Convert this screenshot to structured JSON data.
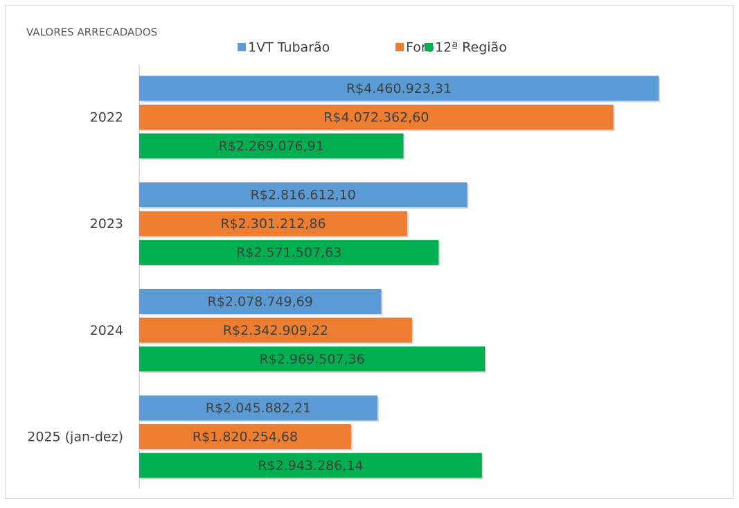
{
  "chart_data": {
    "type": "barh",
    "title": "VALORES ARRECADADOS",
    "categories": [
      "2022",
      "2023",
      "2024",
      "2025 (jan-dez)"
    ],
    "series": [
      {
        "name": "1VT Tubarão",
        "color": "#5b9bd5",
        "values": [
          4460923.31,
          2816612.1,
          2078749.69,
          2045882.21
        ],
        "value_labels": [
          "R$4.460.923,31",
          "R$2.816.612,10",
          "R$2.078.749,69",
          "R$2.045.882,21"
        ]
      },
      {
        "name": "Foro",
        "color": "#ed7d31",
        "values": [
          4072362.6,
          2301212.86,
          2342909.22,
          1820254.68
        ],
        "value_labels": [
          "R$4.072.362,60",
          "R$2.301.212,86",
          "R$2.342.909,22",
          "R$1.820.254,68"
        ]
      },
      {
        "name": "12ª Região",
        "color": "#00b050",
        "values": [
          2269076.91,
          2571507.63,
          2969507.36,
          2943286.14
        ],
        "value_labels": [
          "R$2.269.076,91",
          "R$2.571.507,63",
          "R$2.969.507,36",
          "R$2.943.286,14"
        ]
      }
    ],
    "legend": "top"
  }
}
